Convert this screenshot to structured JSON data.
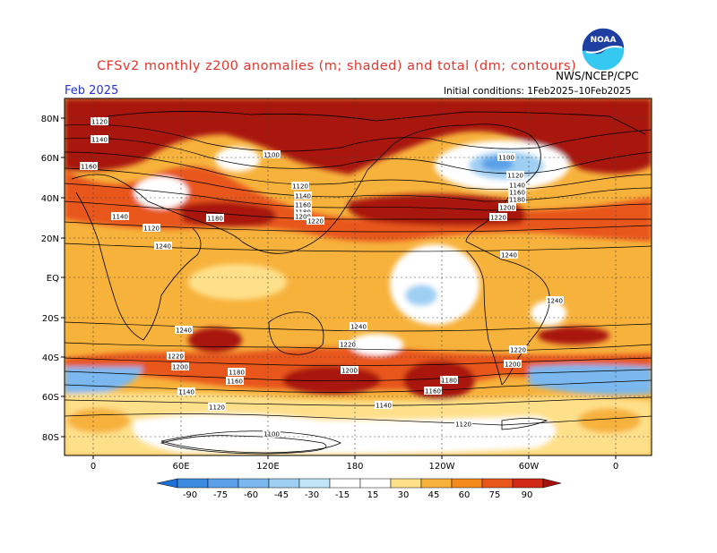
{
  "header": {
    "title": "CFSv2 monthly z200 anomalies (m; shaded) and total (dm; contours)",
    "agency": "NWS/NCEP/CPC",
    "month": "Feb 2025",
    "initial_conditions": "Initial conditions: 1Feb2025–10Feb2025"
  },
  "logo": {
    "text": "NOAA",
    "colors": {
      "top": "#1f3fa0",
      "bottom": "#35c8f0"
    }
  },
  "lat_labels": [
    "80N",
    "60N",
    "40N",
    "20N",
    "EQ",
    "20S",
    "40S",
    "60S",
    "80S"
  ],
  "lon_labels": [
    "0",
    "60E",
    "120E",
    "180",
    "120W",
    "60W",
    "0"
  ],
  "contour_labels": [
    "1120",
    "1140",
    "1160",
    "1100",
    "1120",
    "1140",
    "1160",
    "1180",
    "1200",
    "1220",
    "1240",
    "1100",
    "1120",
    "1140",
    "1160",
    "1180",
    "1200",
    "1220",
    "1240",
    "1240",
    "1240",
    "1220",
    "1200",
    "1180",
    "1160",
    "1140",
    "1120",
    "1100",
    "1220",
    "1200",
    "1180",
    "1160",
    "1140",
    "1120",
    "1240",
    "1220",
    "1200",
    "1180",
    "1140",
    "1120"
  ],
  "colorbar": {
    "ticks": [
      "-90",
      "-75",
      "-60",
      "-45",
      "-30",
      "-15",
      "15",
      "30",
      "45",
      "60",
      "75",
      "90"
    ],
    "colors": [
      "#1e6fd8",
      "#3c8be0",
      "#5aa0e8",
      "#7ab8ef",
      "#9fd0f4",
      "#c0e6f8",
      "#ffffff",
      "#ffe08a",
      "#f7b23c",
      "#f28a1c",
      "#e8561a",
      "#d02a16",
      "#a8120e"
    ]
  },
  "palette": {
    "neutral": "#ffffff",
    "pos1": "#ffe08a",
    "pos2": "#f7b23c",
    "pos3": "#f28a1c",
    "pos4": "#e8561a",
    "pos5": "#d02a16",
    "pos6": "#a8120e",
    "neg1": "#c0e6f8",
    "neg2": "#9fd0f4",
    "neg3": "#7ab8ef",
    "neg4": "#5aa0e8"
  }
}
